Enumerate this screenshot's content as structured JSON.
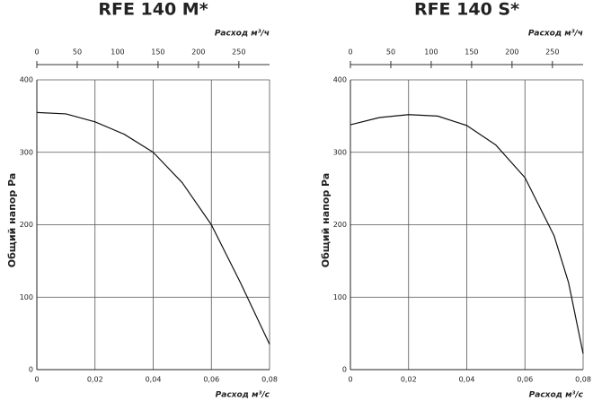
{
  "chart_data": [
    {
      "type": "line",
      "title": "RFE 140 M*",
      "ylabel": "Общий напор Pa",
      "xlabel": "Расход м³/с",
      "x2label": "Расход м³/ч",
      "x": [
        0,
        0.01,
        0.02,
        0.03,
        0.04,
        0.05,
        0.06,
        0.07,
        0.08
      ],
      "values": [
        355,
        353,
        342,
        325,
        300,
        258,
        200,
        120,
        35
      ],
      "color": "#111111",
      "xlim": [
        0,
        0.08
      ],
      "xticks": [
        0,
        {
          "value": 0.02,
          "label": "0,02"
        },
        {
          "value": 0.04,
          "label": "0,04"
        },
        {
          "value": 0.06,
          "label": "0,06"
        },
        {
          "value": 0.08,
          "label": "0,08"
        }
      ],
      "x2lim": [
        0,
        288
      ],
      "x2ticks": [
        0,
        50,
        100,
        150,
        200,
        250
      ],
      "ylim": [
        0,
        400
      ],
      "yticks": [
        0,
        100,
        200,
        300,
        400
      ],
      "grid": true
    },
    {
      "type": "line",
      "title": "RFE 140 S*",
      "ylabel": "Общий напор Pa",
      "xlabel": "Расход м³/с",
      "x2label": "Расход м³/ч",
      "x": [
        0,
        0.01,
        0.02,
        0.03,
        0.04,
        0.05,
        0.06,
        0.07,
        0.075,
        0.08
      ],
      "values": [
        338,
        348,
        352,
        350,
        337,
        310,
        265,
        185,
        120,
        22
      ],
      "color": "#111111",
      "xlim": [
        0,
        0.08
      ],
      "xticks": [
        0,
        {
          "value": 0.02,
          "label": "0,02"
        },
        {
          "value": 0.04,
          "label": "0,04"
        },
        {
          "value": 0.06,
          "label": "0,06"
        },
        {
          "value": 0.08,
          "label": "0,08"
        }
      ],
      "x2lim": [
        0,
        288
      ],
      "x2ticks": [
        0,
        50,
        100,
        150,
        200,
        250
      ],
      "ylim": [
        0,
        400
      ],
      "yticks": [
        0,
        100,
        200,
        300,
        400
      ],
      "grid": true
    }
  ]
}
